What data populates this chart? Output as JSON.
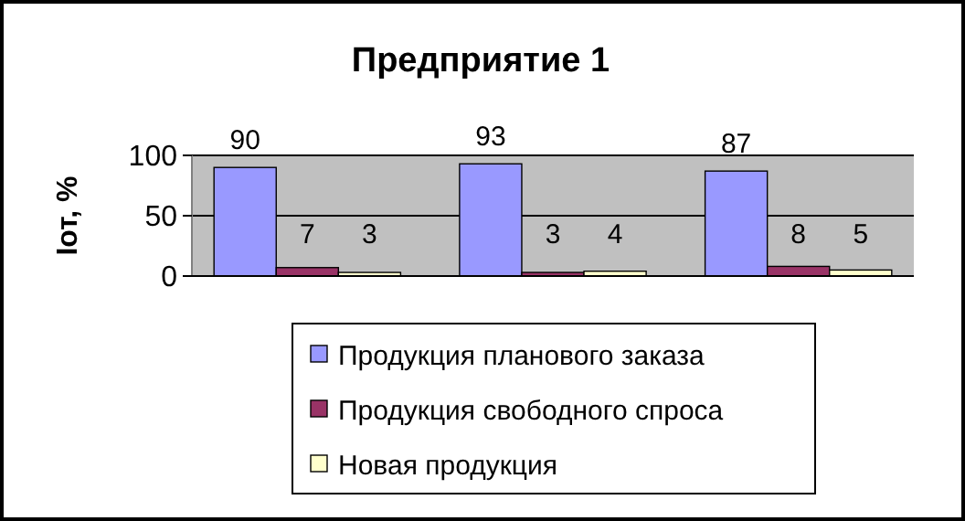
{
  "chart_data": {
    "type": "bar",
    "title": "Предприятие 1",
    "ylabel": "Iот, %",
    "categories": [
      null,
      null,
      null
    ],
    "series": [
      {
        "name": "Продукция планового заказа",
        "color": "#9999ff",
        "values": [
          90,
          93,
          87
        ]
      },
      {
        "name": "Продукция свободного спроса",
        "color": "#993366",
        "values": [
          7,
          3,
          8
        ]
      },
      {
        "name": "Новая продукция",
        "color": "#ffffcc",
        "values": [
          3,
          4,
          5
        ]
      }
    ],
    "ylim": [
      0,
      100
    ],
    "yticks": [
      0,
      50,
      100
    ],
    "grid": "y",
    "legend": "bottom",
    "data_labels": true
  }
}
